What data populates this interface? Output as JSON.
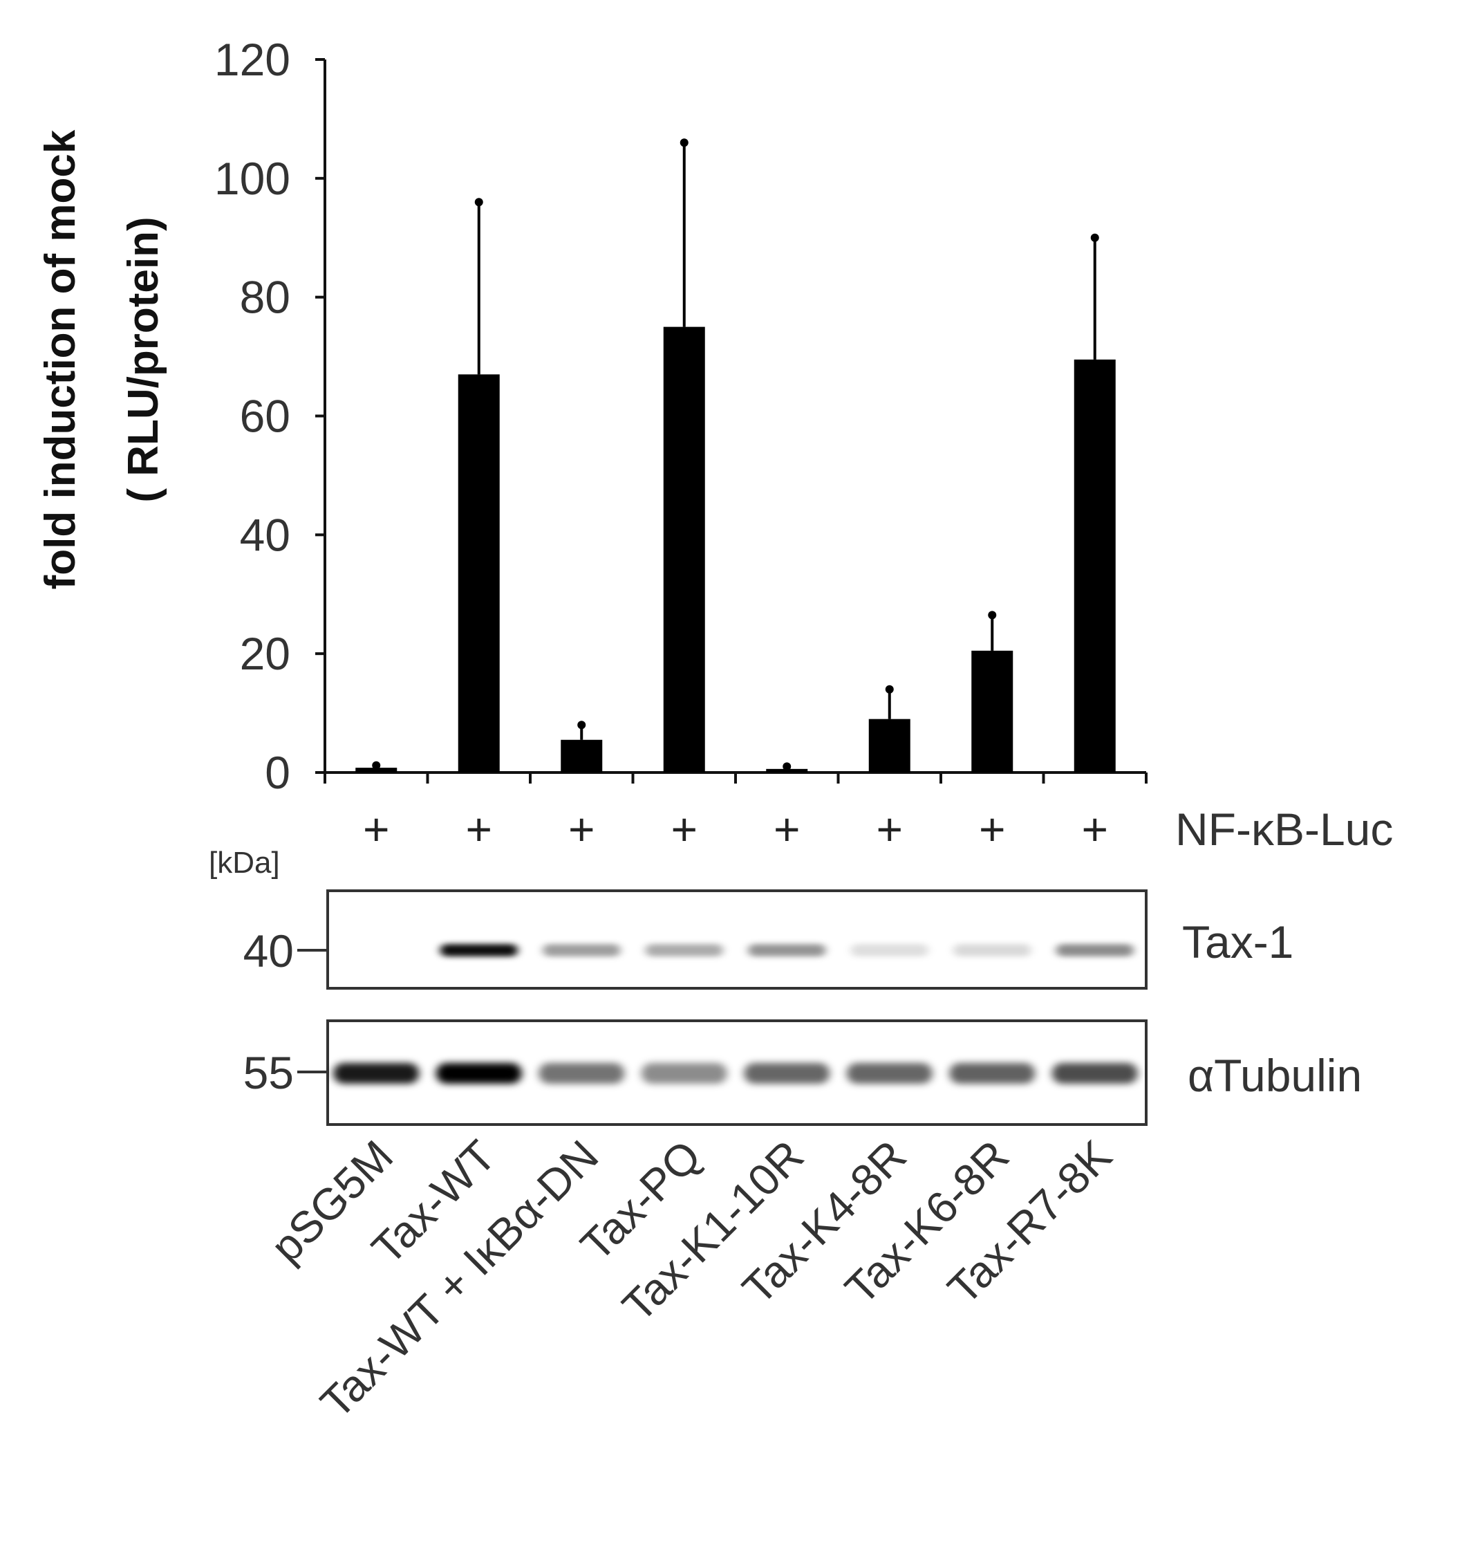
{
  "chart_data": {
    "type": "bar",
    "title": "",
    "ylabel_line1": "fold induction of mock",
    "ylabel_line2": "( RLU/protein)",
    "ylim": [
      0,
      120
    ],
    "yticks": [
      "0",
      "20",
      "40",
      "60",
      "80",
      "100",
      "120"
    ],
    "categories": [
      "pSG5M",
      "Tax-WT",
      "Tax-WT + IκBα-DN",
      "Tax-PQ",
      "Tax-K1-10R",
      "Tax-K4-8R",
      "Tax-K6-8R",
      "Tax-R7-8K"
    ],
    "values": [
      0.8,
      67,
      5.5,
      75,
      0.6,
      9,
      20.5,
      69.5
    ],
    "error_upper": [
      1.2,
      96,
      8,
      106,
      1.0,
      14,
      26.5,
      90
    ],
    "bar_color": "#000000"
  },
  "treatment_row": {
    "label": "NF-κB-Luc",
    "marks": [
      "+",
      "+",
      "+",
      "+",
      "+",
      "+",
      "+",
      "+"
    ]
  },
  "blots": {
    "unit_label": "[kDa]",
    "tax": {
      "name": "Tax-1",
      "marker": "40",
      "band_intensity": [
        0.0,
        0.95,
        0.38,
        0.33,
        0.42,
        0.13,
        0.15,
        0.45
      ]
    },
    "tubulin": {
      "name": "αTubulin",
      "marker": "55",
      "band_intensity": [
        0.9,
        1.0,
        0.55,
        0.45,
        0.6,
        0.6,
        0.62,
        0.7
      ]
    }
  }
}
